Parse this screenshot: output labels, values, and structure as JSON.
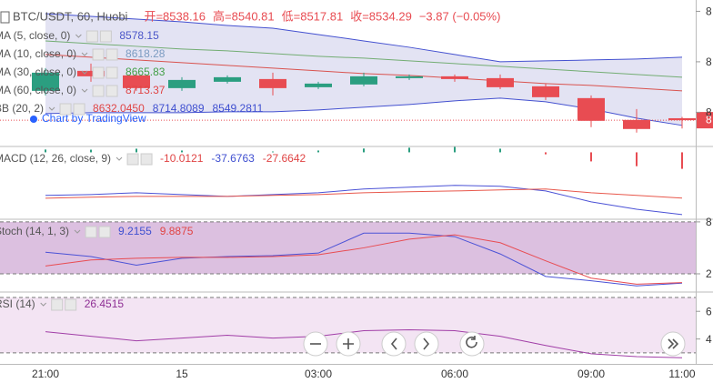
{
  "chart_data": [
    {
      "type": "candlestick",
      "title": "BTC/USDT, 60, Huobi",
      "header": [
        "开=8538.16",
        "高=8540.81",
        "低=8517.81",
        "收=8534.29",
        "−3.87 (−0.05%)"
      ],
      "watermark": "Chart by TradingView",
      "categories": [
        "21:00",
        null,
        null,
        "15",
        null,
        null,
        "03:00",
        null,
        null,
        "06:00",
        null,
        null,
        "09:00",
        null,
        "11:00"
      ],
      "open": [
        8592.4,
        8632,
        8623,
        8597.8,
        8610.4,
        8615.8,
        8599.6,
        8605,
        8617.6,
        8621.2,
        8617.6,
        8601.4,
        8578,
        8534.8,
        8538.16
      ],
      "high": [
        8637.4,
        8646.4,
        8628.4,
        8619.4,
        8623,
        8628.4,
        8610.4,
        8628.4,
        8624.8,
        8624.8,
        8624.8,
        8606.8,
        8583.4,
        8556.4,
        8540.81
      ],
      "low": [
        8583.4,
        8610.4,
        8592.4,
        8592.4,
        8606.8,
        8583.4,
        8596,
        8601.4,
        8614,
        8610.4,
        8596,
        8574.4,
        8520.4,
        8509.6,
        8517.81
      ],
      "close": [
        8628.4,
        8621.2,
        8597.8,
        8614,
        8619.4,
        8597.8,
        8606.8,
        8621.2,
        8621.2,
        8615.8,
        8599.6,
        8579.8,
        8533,
        8516.8,
        8534.29
      ],
      "up_color": "#2b9e80",
      "down_color": "#e84c52",
      "series": [
        {
          "color": "#4451d0",
          "values": [
            8745.4,
            8740,
            8734.6,
            8729.2,
            8722,
            8716.6,
            8704,
            8691.4,
            8678.8,
            8664.4,
            8650,
            8651.8,
            8653.6,
            8655.4,
            8659
          ]
        },
        {
          "color": "#d9534f",
          "values": [
            8664.4,
            8659,
            8653.6,
            8648.2,
            8642.8,
            8637.4,
            8632,
            8626.6,
            8623,
            8617.6,
            8612.2,
            8606.8,
            8603.2,
            8597.8,
            8592.4
          ]
        },
        {
          "color": "#4451d0",
          "values": [
            8547.4,
            8549.2,
            8549.2,
            8549.2,
            8551,
            8551,
            8554.6,
            8560,
            8565.4,
            8572.6,
            8578,
            8570.8,
            8556.4,
            8538.4,
            8524
          ]
        },
        {
          "color": "#73ad73",
          "values": [
            8691.4,
            8686,
            8680.6,
            8675.2,
            8671.6,
            8666.2,
            8660.8,
            8657.2,
            8651.8,
            8646.4,
            8641,
            8635.6,
            8630.2,
            8624.8,
            8619.4
          ]
        }
      ],
      "fill_between": [
        0,
        2
      ],
      "fill_color": "#dcdcf0",
      "ylim": [
        8484,
        8758
      ],
      "yticks": [
        {
          "value": 8750,
          "label": "8"
        },
        {
          "value": 8650,
          "label": "8"
        },
        {
          "value": 8550,
          "label": "8"
        }
      ],
      "last_price_label": "8",
      "legend": [
        {
          "label": "MA (5, close, 0)",
          "values": [
            "8578.15"
          ],
          "colors": [
            "#4a55c8"
          ]
        },
        {
          "label": "MA (10, close, 0)",
          "values": [
            "8618.28"
          ],
          "colors": [
            "#7c9cc2"
          ]
        },
        {
          "label": "MA (30, close, 0)",
          "values": [
            "8665.83"
          ],
          "colors": [
            "#43a047"
          ]
        },
        {
          "label": "MA (60, close, 0)",
          "values": [
            "8713.37"
          ],
          "colors": [
            "#e04545"
          ]
        },
        {
          "label": "BB (20, 2)",
          "values": [
            "8632.0450",
            "8714.8089",
            "8549.2811"
          ],
          "colors": [
            "#e04545",
            "#3f4fd0",
            "#3f4fd0"
          ]
        }
      ]
    },
    {
      "type": "macd",
      "series": [
        {
          "color": "#4b52d6",
          "values": [
            -26.1,
            -25.6,
            -24.5,
            -25.6,
            -26.7,
            -25.6,
            -24.5,
            -22.2,
            -21.1,
            -20,
            -20.6,
            -23.4,
            -30,
            -34.5,
            -37.7
          ]
        },
        {
          "color": "#e8584c",
          "values": [
            -27.8,
            -27.2,
            -26.7,
            -26.7,
            -26.7,
            -26.1,
            -25.6,
            -24.5,
            -23.9,
            -23.4,
            -22.8,
            -22.2,
            -24.5,
            -26.1,
            -27.7
          ]
        }
      ],
      "histogram": [
        1.7,
        1.6,
        2.2,
        1.1,
        0,
        0.5,
        1.1,
        2.3,
        2.8,
        3.4,
        2.2,
        -1.2,
        -5.5,
        -8.4,
        -10
      ],
      "histogram_colors": [
        "#2b9e80",
        "#e84c52"
      ],
      "ylim": [
        -40,
        3
      ],
      "legend": [
        {
          "label": "MACD (12, 26, close, 9)",
          "values": [
            "-10.0121",
            "-37.6763",
            "-27.6642"
          ],
          "colors": [
            "#e04545",
            "#3f4fd0",
            "#e04545"
          ]
        }
      ]
    },
    {
      "type": "line",
      "series": [
        {
          "color": "#4b52d6",
          "values": [
            45,
            40,
            30,
            38,
            40,
            41,
            44,
            67,
            67,
            63,
            43,
            17,
            12,
            6,
            9.2
          ]
        },
        {
          "color": "#e84c52",
          "values": [
            29,
            36,
            38,
            39,
            39,
            40,
            42,
            50,
            60,
            65,
            56,
            35,
            15,
            8,
            9.9
          ]
        }
      ],
      "bands": [
        20,
        80
      ],
      "band_color": "#dcc0e0",
      "ylim": [
        0,
        82
      ],
      "yticks": [
        {
          "value": 80,
          "label": "8"
        },
        {
          "value": 20,
          "label": "2"
        }
      ],
      "legend": [
        {
          "label": "Stoch (14, 1, 3)",
          "values": [
            "9.2155",
            "9.8875"
          ],
          "colors": [
            "#3f4fd0",
            "#e04545"
          ]
        }
      ]
    },
    {
      "type": "line",
      "series": [
        {
          "color": "#a13ea7",
          "values": [
            45.3,
            42,
            38.7,
            40.7,
            42.7,
            40.7,
            42,
            46,
            46.7,
            46,
            42,
            35.3,
            29.3,
            27.3,
            26.45
          ]
        }
      ],
      "bands": [
        30,
        70
      ],
      "band_color": "#f3e4f3",
      "ylim": [
        22,
        73.3
      ],
      "yticks": [
        {
          "value": 60,
          "label": "6"
        },
        {
          "value": 40,
          "label": "4"
        }
      ],
      "legend": [
        {
          "label": "RSI (14)",
          "values": [
            "26.4515"
          ],
          "colors": [
            "#8e2f94"
          ]
        }
      ]
    }
  ]
}
